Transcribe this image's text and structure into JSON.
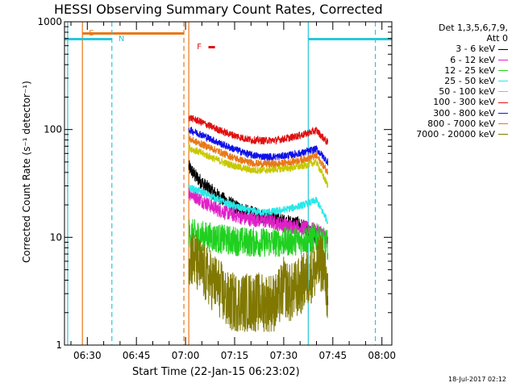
{
  "title": "HESSI Observing Summary Count Rates, Corrected",
  "xlabel": "Start Time (22-Jan-15 06:23:02)",
  "ylabel": "Corrected Count Rate (s⁻¹ detector⁻¹)",
  "timestamp": "18-Jul-2017 02:12",
  "legend_header": [
    "Det 1,3,5,6,7,9,",
    "Att 0"
  ],
  "annotations": [
    {
      "text": "S",
      "color": "#e87818"
    },
    {
      "text": "N",
      "color": "#28c8d8"
    },
    {
      "text": "F",
      "color": "#e01010"
    }
  ],
  "chart_data": {
    "type": "line",
    "title": "HESSI Observing Summary Count Rates, Corrected",
    "xlabel": "Start Time (22-Jan-15 06:23:02)",
    "ylabel": "Corrected Count Rate (s⁻¹ detector⁻¹)",
    "yscale": "log",
    "ylim": [
      1,
      1000
    ],
    "yticks": [
      {
        "value": 1,
        "label": "1"
      },
      {
        "value": 10,
        "label": "10"
      },
      {
        "value": 100,
        "label": "100"
      },
      {
        "value": 1000,
        "label": "1000"
      }
    ],
    "xlim_minutes": [
      383.03,
      483.03
    ],
    "xticks": [
      {
        "label": "06:30",
        "minutes": 390
      },
      {
        "label": "06:45",
        "minutes": 405
      },
      {
        "label": "07:00",
        "minutes": 420
      },
      {
        "label": "07:15",
        "minutes": 435
      },
      {
        "label": "07:30",
        "minutes": 450
      },
      {
        "label": "07:45",
        "minutes": 465
      },
      {
        "label": "08:00",
        "minutes": 480
      }
    ],
    "legend_position": "right",
    "series": [
      {
        "name": "3 - 6 keV",
        "color": "#000000",
        "x": [
          421,
          423,
          426,
          430,
          434,
          438,
          442,
          446,
          450,
          454,
          456,
          458,
          460,
          462,
          463.5
        ],
        "y": [
          45,
          37,
          30,
          24,
          20,
          17.5,
          16,
          15.5,
          14,
          13.5,
          12.5,
          11,
          10,
          5.5,
          2.5
        ]
      },
      {
        "name": "6 - 12 keV",
        "color": "#e020c8",
        "x": [
          421,
          423,
          426,
          430,
          434,
          438,
          442,
          446,
          450,
          454,
          458,
          462,
          463.5
        ],
        "y": [
          26,
          24,
          21,
          18,
          16.5,
          15,
          14.5,
          14,
          13,
          12.5,
          12,
          11,
          9
        ]
      },
      {
        "name": "12 - 25 keV",
        "color": "#20d020",
        "x": [
          421,
          424,
          428,
          432,
          436,
          440,
          444,
          448,
          452,
          456,
          460,
          463.5
        ],
        "y": [
          11,
          10.5,
          10,
          9.5,
          9.2,
          9,
          9,
          9,
          9.2,
          9.5,
          9.8,
          8.5
        ]
      },
      {
        "name": "25 - 50 keV",
        "color": "#28e8e8",
        "x": [
          421,
          424,
          428,
          432,
          436,
          440,
          444,
          448,
          452,
          456,
          460,
          463.5
        ],
        "y": [
          29,
          27,
          24,
          21,
          19,
          17.5,
          17,
          17.5,
          18.5,
          20,
          22,
          14
        ]
      },
      {
        "name": "50 - 100 keV",
        "color": "#c8c800",
        "x": [
          421,
          424,
          428,
          432,
          436,
          440,
          444,
          448,
          452,
          456,
          460,
          463.5
        ],
        "y": [
          68,
          62,
          55,
          49,
          45,
          42,
          42,
          43,
          44,
          46,
          50,
          30
        ]
      },
      {
        "name": "100 - 300 keV",
        "color": "#e01010",
        "x": [
          421,
          424,
          428,
          432,
          436,
          440,
          444,
          448,
          452,
          456,
          460,
          463.5
        ],
        "y": [
          130,
          120,
          106,
          94,
          86,
          80,
          79,
          80,
          84,
          90,
          98,
          75
        ]
      },
      {
        "name": "300 - 800 keV",
        "color": "#1010e8",
        "x": [
          421,
          424,
          428,
          432,
          436,
          440,
          444,
          448,
          452,
          456,
          460,
          463.5
        ],
        "y": [
          100,
          92,
          81,
          71,
          64,
          58,
          56,
          56,
          58,
          61,
          66,
          50
        ]
      },
      {
        "name": "800 - 7000 keV",
        "color": "#e87818",
        "x": [
          421,
          424,
          428,
          432,
          436,
          440,
          444,
          448,
          452,
          456,
          460,
          463.5
        ],
        "y": [
          82,
          75,
          67,
          59,
          53,
          49,
          48,
          48,
          50,
          53,
          57,
          40
        ]
      },
      {
        "name": "7000 - 20000 keV",
        "color": "#807800",
        "x": [
          421,
          423,
          426,
          428,
          430,
          433,
          436,
          440,
          444,
          448,
          450,
          452,
          455,
          458,
          460,
          462,
          463.5
        ],
        "y": [
          7,
          6,
          4.5,
          4,
          3.5,
          2.5,
          2.5,
          2.5,
          2.5,
          2.5,
          3.5,
          3,
          3.5,
          4.5,
          5,
          6,
          2.8
        ]
      }
    ],
    "flags": [
      {
        "name": "S",
        "color": "#e87818",
        "vertical_lines_minutes": [
          {
            "x": 388.5,
            "style": "solid"
          },
          {
            "x": 419.5,
            "style": "dashed"
          }
        ],
        "bar_minutes": [
          388.5,
          419.5
        ]
      },
      {
        "name": "N",
        "color": "#28c8d8",
        "vertical_lines_minutes": [
          {
            "x": 384,
            "style": "solid"
          },
          {
            "x": 397.5,
            "style": "dashed"
          },
          {
            "x": 457.5,
            "style": "solid"
          },
          {
            "x": 478,
            "style": "dashed"
          }
        ],
        "bars_minutes": [
          [
            383.03,
            397.5
          ],
          [
            457.5,
            483.03
          ]
        ]
      },
      {
        "name": "F",
        "color": "#e01010",
        "bar_minutes": [
          427,
          429
        ]
      },
      {
        "name": "",
        "color": "#e87818",
        "vertical_lines_minutes": [
          {
            "x": 421,
            "style": "solid"
          }
        ]
      }
    ]
  }
}
